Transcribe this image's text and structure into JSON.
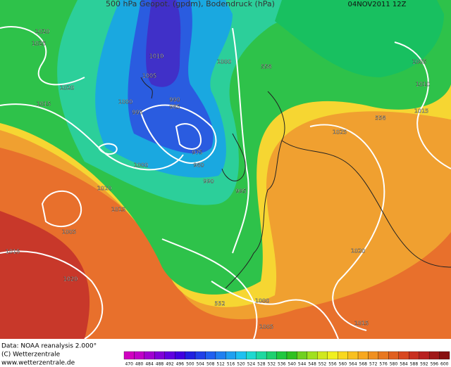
{
  "header": {
    "title": "500 hPa Geopot. (gpdm), Bodendruck (hPa)",
    "date": "04NOV2011 12Z"
  },
  "footer": {
    "source": "Data: NOAA reanalysis 2.000°",
    "copyright": "(C) Wetterzentrale",
    "url": "www.wetterzentrale.de"
  },
  "map": {
    "contour_labels": [
      1020,
      1025,
      1020,
      1015,
      1010,
      1005,
      1000,
      995,
      990,
      985,
      1000,
      558,
      975,
      980,
      990,
      995,
      1000,
      1010,
      1015,
      1005,
      1015,
      1020,
      1025,
      558,
      1015,
      1010,
      1005,
      1020,
      1015,
      1000,
      1005,
      552
    ]
  },
  "colorbar": {
    "labels": [
      470,
      480,
      484,
      488,
      492,
      496,
      500,
      504,
      508,
      512,
      516,
      520,
      524,
      528,
      532,
      536,
      540,
      544,
      548,
      552,
      556,
      560,
      564,
      568,
      572,
      576,
      580,
      584,
      588,
      592,
      596,
      600
    ]
  }
}
